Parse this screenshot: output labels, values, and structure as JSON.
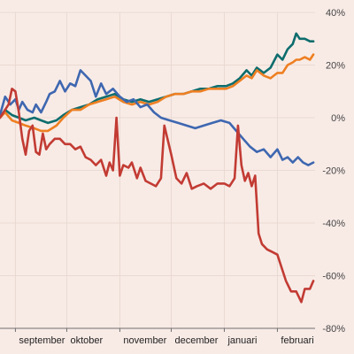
{
  "chart_data": {
    "type": "line",
    "title": "",
    "xlabel": "",
    "ylabel": "",
    "ylim": [
      -80,
      40
    ],
    "yticks": [
      40,
      20,
      0,
      -20,
      -40,
      -60,
      -80
    ],
    "ytick_labels": [
      "40%",
      "20%",
      "0%",
      "-20%",
      "-40%",
      "-60%",
      "-80%"
    ],
    "xlim": [
      "2017-08-23",
      "2018-02-23"
    ],
    "xticks": [
      {
        "label": "september",
        "date": "2017-09-01"
      },
      {
        "label": "oktober",
        "date": "2017-10-01"
      },
      {
        "label": "november",
        "date": "2017-11-01"
      },
      {
        "label": "december",
        "date": "2017-12-01"
      },
      {
        "label": "januari",
        "date": "2018-01-01"
      },
      {
        "label": "februari",
        "date": "2018-02-01"
      }
    ],
    "grid": true,
    "legend": "none",
    "series": [
      {
        "color": "#0e6d6d",
        "points": [
          [
            "2017-08-23",
            0
          ],
          [
            "2017-08-26",
            3
          ],
          [
            "2017-08-30",
            1
          ],
          [
            "2017-09-03",
            0
          ],
          [
            "2017-09-07",
            -1
          ],
          [
            "2017-09-12",
            0
          ],
          [
            "2017-09-16",
            -1
          ],
          [
            "2017-09-20",
            -2
          ],
          [
            "2017-09-25",
            -1
          ],
          [
            "2017-09-29",
            1
          ],
          [
            "2017-10-04",
            3
          ],
          [
            "2017-10-09",
            4
          ],
          [
            "2017-10-14",
            5
          ],
          [
            "2017-10-19",
            7
          ],
          [
            "2017-10-24",
            8
          ],
          [
            "2017-10-29",
            9
          ],
          [
            "2017-11-03",
            7
          ],
          [
            "2017-11-08",
            6
          ],
          [
            "2017-11-13",
            7
          ],
          [
            "2017-11-18",
            6
          ],
          [
            "2017-11-23",
            7
          ],
          [
            "2017-11-28",
            8
          ],
          [
            "2017-12-03",
            9
          ],
          [
            "2017-12-08",
            9
          ],
          [
            "2017-12-13",
            10
          ],
          [
            "2017-12-18",
            11
          ],
          [
            "2017-12-23",
            11
          ],
          [
            "2017-12-28",
            12
          ],
          [
            "2018-01-02",
            12
          ],
          [
            "2018-01-06",
            13
          ],
          [
            "2018-01-10",
            15
          ],
          [
            "2018-01-14",
            18
          ],
          [
            "2018-01-17",
            16
          ],
          [
            "2018-01-20",
            19
          ],
          [
            "2018-01-24",
            17
          ],
          [
            "2018-01-28",
            19
          ],
          [
            "2018-02-01",
            24
          ],
          [
            "2018-02-04",
            22
          ],
          [
            "2018-02-07",
            26
          ],
          [
            "2018-02-10",
            28
          ],
          [
            "2018-02-12",
            32
          ],
          [
            "2018-02-14",
            30
          ],
          [
            "2018-02-17",
            30
          ],
          [
            "2018-02-20",
            29
          ],
          [
            "2018-02-22",
            29
          ]
        ]
      },
      {
        "color": "#ee7f22",
        "points": [
          [
            "2017-08-23",
            0
          ],
          [
            "2017-08-26",
            2
          ],
          [
            "2017-08-30",
            -1
          ],
          [
            "2017-09-03",
            -2
          ],
          [
            "2017-09-07",
            -3
          ],
          [
            "2017-09-12",
            -4
          ],
          [
            "2017-09-16",
            -5
          ],
          [
            "2017-09-20",
            -5
          ],
          [
            "2017-09-25",
            -3
          ],
          [
            "2017-09-29",
            0
          ],
          [
            "2017-10-04",
            3
          ],
          [
            "2017-10-09",
            3
          ],
          [
            "2017-10-14",
            5
          ],
          [
            "2017-10-19",
            6
          ],
          [
            "2017-10-24",
            7
          ],
          [
            "2017-10-29",
            8
          ],
          [
            "2017-11-03",
            6
          ],
          [
            "2017-11-08",
            5
          ],
          [
            "2017-11-13",
            6
          ],
          [
            "2017-11-18",
            5
          ],
          [
            "2017-11-23",
            6
          ],
          [
            "2017-11-28",
            8
          ],
          [
            "2017-12-03",
            9
          ],
          [
            "2017-12-08",
            9
          ],
          [
            "2017-12-13",
            10
          ],
          [
            "2017-12-18",
            10
          ],
          [
            "2017-12-23",
            11
          ],
          [
            "2017-12-28",
            11
          ],
          [
            "2018-01-02",
            11
          ],
          [
            "2018-01-06",
            12
          ],
          [
            "2018-01-10",
            14
          ],
          [
            "2018-01-14",
            16
          ],
          [
            "2018-01-17",
            15
          ],
          [
            "2018-01-20",
            18
          ],
          [
            "2018-01-24",
            16
          ],
          [
            "2018-01-28",
            15
          ],
          [
            "2018-02-01",
            17
          ],
          [
            "2018-02-04",
            17
          ],
          [
            "2018-02-07",
            20
          ],
          [
            "2018-02-10",
            21
          ],
          [
            "2018-02-12",
            22
          ],
          [
            "2018-02-14",
            22
          ],
          [
            "2018-02-17",
            23
          ],
          [
            "2018-02-20",
            22
          ],
          [
            "2018-02-22",
            24
          ]
        ]
      },
      {
        "color": "#3e67b0",
        "points": [
          [
            "2017-08-23",
            1
          ],
          [
            "2017-08-26",
            8
          ],
          [
            "2017-08-29",
            5
          ],
          [
            "2017-09-01",
            7
          ],
          [
            "2017-09-03",
            3
          ],
          [
            "2017-09-05",
            6
          ],
          [
            "2017-09-08",
            3
          ],
          [
            "2017-09-11",
            2
          ],
          [
            "2017-09-13",
            5
          ],
          [
            "2017-09-16",
            2
          ],
          [
            "2017-09-19",
            6
          ],
          [
            "2017-09-21",
            9
          ],
          [
            "2017-09-24",
            10
          ],
          [
            "2017-09-27",
            14
          ],
          [
            "2017-09-30",
            10
          ],
          [
            "2017-10-03",
            13
          ],
          [
            "2017-10-06",
            12
          ],
          [
            "2017-10-09",
            18
          ],
          [
            "2017-10-12",
            16
          ],
          [
            "2017-10-15",
            14
          ],
          [
            "2017-10-18",
            8
          ],
          [
            "2017-10-21",
            13
          ],
          [
            "2017-10-24",
            9
          ],
          [
            "2017-10-28",
            11
          ],
          [
            "2017-11-01",
            8
          ],
          [
            "2017-11-05",
            6
          ],
          [
            "2017-11-09",
            7
          ],
          [
            "2017-11-13",
            4
          ],
          [
            "2017-11-17",
            5
          ],
          [
            "2017-11-21",
            2
          ],
          [
            "2017-11-25",
            0
          ],
          [
            "2017-11-30",
            -1
          ],
          [
            "2017-12-05",
            -2
          ],
          [
            "2017-12-10",
            -3
          ],
          [
            "2017-12-15",
            -4
          ],
          [
            "2017-12-20",
            -3
          ],
          [
            "2017-12-25",
            -2
          ],
          [
            "2017-12-30",
            -1
          ],
          [
            "2018-01-04",
            -2
          ],
          [
            "2018-01-08",
            -5
          ],
          [
            "2018-01-12",
            -8
          ],
          [
            "2018-01-16",
            -11
          ],
          [
            "2018-01-20",
            -13
          ],
          [
            "2018-01-24",
            -12
          ],
          [
            "2018-01-28",
            -15
          ],
          [
            "2018-02-01",
            -12
          ],
          [
            "2018-02-04",
            -16
          ],
          [
            "2018-02-07",
            -15
          ],
          [
            "2018-02-10",
            -17
          ],
          [
            "2018-02-13",
            -15
          ],
          [
            "2018-02-16",
            -17
          ],
          [
            "2018-02-19",
            -18
          ],
          [
            "2018-02-22",
            -17
          ]
        ]
      },
      {
        "color": "#c23b33",
        "points": [
          [
            "2017-08-23",
            0
          ],
          [
            "2017-08-26",
            3
          ],
          [
            "2017-08-28",
            5
          ],
          [
            "2017-08-30",
            11
          ],
          [
            "2017-09-01",
            10
          ],
          [
            "2017-09-03",
            2
          ],
          [
            "2017-09-05",
            -8
          ],
          [
            "2017-09-07",
            -14
          ],
          [
            "2017-09-09",
            -5
          ],
          [
            "2017-09-11",
            -3
          ],
          [
            "2017-09-13",
            -13
          ],
          [
            "2017-09-15",
            -14
          ],
          [
            "2017-09-17",
            -6
          ],
          [
            "2017-09-19",
            -12
          ],
          [
            "2017-09-21",
            -10
          ],
          [
            "2017-09-24",
            -8
          ],
          [
            "2017-09-27",
            -8
          ],
          [
            "2017-09-30",
            -10
          ],
          [
            "2017-10-03",
            -10
          ],
          [
            "2017-10-06",
            -12
          ],
          [
            "2017-10-09",
            -11
          ],
          [
            "2017-10-12",
            -15
          ],
          [
            "2017-10-15",
            -16
          ],
          [
            "2017-10-18",
            -18
          ],
          [
            "2017-10-21",
            -16
          ],
          [
            "2017-10-24",
            -22
          ],
          [
            "2017-10-26",
            -17
          ],
          [
            "2017-10-28",
            -20
          ],
          [
            "2017-10-30",
            0
          ],
          [
            "2017-11-01",
            -22
          ],
          [
            "2017-11-03",
            -18
          ],
          [
            "2017-11-06",
            -19
          ],
          [
            "2017-11-08",
            -17
          ],
          [
            "2017-11-11",
            -23
          ],
          [
            "2017-11-13",
            -19
          ],
          [
            "2017-11-16",
            -24
          ],
          [
            "2017-11-19",
            -25
          ],
          [
            "2017-11-22",
            -26
          ],
          [
            "2017-11-25",
            -23
          ],
          [
            "2017-11-27",
            -3
          ],
          [
            "2017-12-01",
            -14
          ],
          [
            "2017-12-04",
            -23
          ],
          [
            "2017-12-07",
            -25
          ],
          [
            "2017-12-10",
            -21
          ],
          [
            "2017-12-13",
            -27
          ],
          [
            "2017-12-16",
            -26
          ],
          [
            "2017-12-20",
            -25
          ],
          [
            "2017-12-24",
            -27
          ],
          [
            "2017-12-28",
            -25
          ],
          [
            "2018-01-01",
            -25
          ],
          [
            "2018-01-04",
            -26
          ],
          [
            "2018-01-07",
            -23
          ],
          [
            "2018-01-09",
            -3
          ],
          [
            "2018-01-11",
            -18
          ],
          [
            "2018-01-13",
            -24
          ],
          [
            "2018-01-15",
            -21
          ],
          [
            "2018-01-17",
            -26
          ],
          [
            "2018-01-19",
            -22
          ],
          [
            "2018-01-21",
            -44
          ],
          [
            "2018-01-23",
            -48
          ],
          [
            "2018-01-26",
            -50
          ],
          [
            "2018-01-29",
            -51
          ],
          [
            "2018-02-01",
            -52
          ],
          [
            "2018-02-03",
            -56
          ],
          [
            "2018-02-06",
            -62
          ],
          [
            "2018-02-09",
            -66
          ],
          [
            "2018-02-12",
            -66
          ],
          [
            "2018-02-15",
            -70
          ],
          [
            "2018-02-17",
            -65
          ],
          [
            "2018-02-20",
            -65
          ],
          [
            "2018-02-22",
            -62
          ]
        ]
      }
    ]
  }
}
